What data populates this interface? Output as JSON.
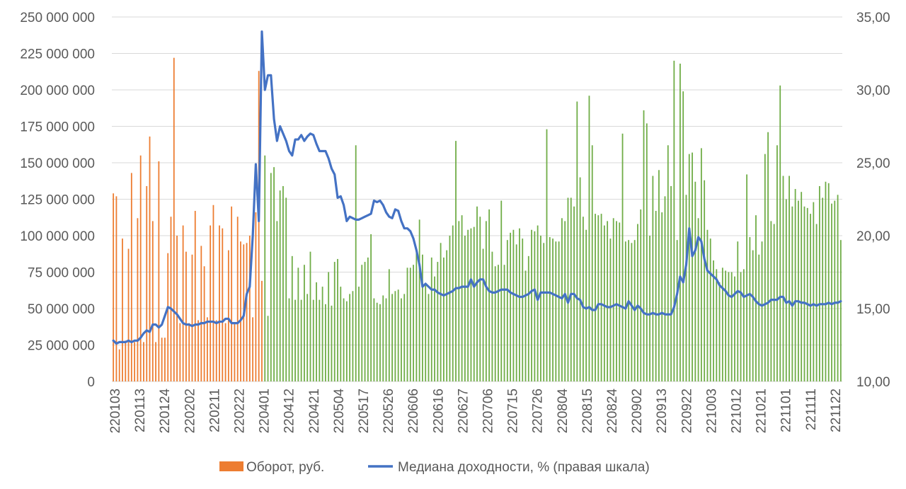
{
  "chart_data": {
    "type": "bar+line",
    "title": "",
    "colors": {
      "turnover_before": "#ed7d31",
      "turnover_after": "#70ad47",
      "yield_line": "#4472c4",
      "grid": "#d9d9d9",
      "text": "#595959"
    },
    "y_left": {
      "ylim": [
        0,
        250000000
      ],
      "ticks": [
        "0",
        "25 000 000",
        "50 000 000",
        "75 000 000",
        "100 000 000",
        "125 000 000",
        "150 000 000",
        "175 000 000",
        "200 000 000",
        "225 000 000",
        "250 000 000"
      ]
    },
    "y_right": {
      "ylim": [
        10,
        35
      ],
      "ticks": [
        "10,00",
        "15,00",
        "20,00",
        "25,00",
        "30,00",
        "35,00"
      ]
    },
    "x_tick_labels": [
      "220103",
      "220113",
      "220124",
      "220202",
      "220211",
      "220222",
      "220401",
      "220412",
      "220421",
      "220504",
      "220517",
      "220526",
      "220606",
      "220616",
      "220627",
      "220706",
      "220715",
      "220726",
      "220804",
      "220815",
      "220824",
      "220902",
      "220913",
      "220922",
      "221003",
      "221012",
      "221021",
      "221101",
      "221111",
      "221122"
    ],
    "bar_split_index": 50,
    "series": [
      {
        "name": "Оборот, руб.",
        "type": "bar",
        "values": [
          129,
          127,
          22,
          98,
          28,
          91,
          143,
          27,
          112,
          155,
          27,
          134,
          168,
          110,
          27,
          151,
          30,
          30,
          88,
          113,
          222,
          100,
          40,
          107,
          89,
          40,
          87,
          117,
          42,
          93,
          79,
          44,
          107,
          121,
          42,
          107,
          105,
          40,
          90,
          120,
          40,
          113,
          96,
          94,
          95,
          100,
          44,
          116,
          213,
          69,
          155,
          45,
          143,
          147,
          110,
          131,
          134,
          126,
          57,
          86,
          56,
          78,
          56,
          80,
          60,
          89,
          56,
          68,
          56,
          65,
          53,
          75,
          52,
          82,
          84,
          65,
          57,
          55,
          60,
          62,
          162,
          65,
          80,
          82,
          85,
          101,
          57,
          54,
          53,
          59,
          57,
          77,
          60,
          62,
          63,
          57,
          60,
          78,
          78,
          80,
          89,
          111,
          87,
          66,
          60,
          85,
          72,
          82,
          95,
          85,
          90,
          100,
          107,
          165,
          110,
          114,
          100,
          104,
          105,
          106,
          120,
          113,
          91,
          110,
          118,
          89,
          79,
          80,
          124,
          80,
          97,
          102,
          104,
          94,
          105,
          98,
          76,
          86,
          104,
          103,
          107,
          100,
          95,
          173,
          99,
          98,
          96,
          96,
          112,
          110,
          126,
          126,
          120,
          192,
          140,
          113,
          104,
          196,
          162,
          115,
          114,
          115,
          107,
          110,
          98,
          112,
          110,
          109,
          170,
          96,
          97,
          95,
          97,
          108,
          118,
          186,
          177,
          100,
          141,
          117,
          145,
          116,
          127,
          162,
          134,
          220,
          97,
          218,
          199,
          128,
          156,
          157,
          137,
          112,
          160,
          138,
          104,
          98,
          83,
          77,
          68,
          78,
          76,
          75,
          75,
          72,
          96,
          75,
          77,
          142,
          99,
          90,
          114,
          87,
          96,
          156,
          171,
          110,
          108,
          162,
          203,
          141,
          125,
          141,
          120,
          132,
          124,
          130,
          120,
          119,
          115,
          123,
          108,
          134,
          126,
          137,
          136,
          122,
          124,
          128,
          97
        ]
      },
      {
        "name": "Медиана доходности, % (правая шкала)",
        "type": "line",
        "values": [
          12.8,
          12.6,
          12.7,
          12.7,
          12.7,
          12.8,
          12.7,
          12.8,
          12.8,
          13.0,
          13.3,
          13.5,
          13.4,
          13.9,
          13.9,
          13.7,
          13.9,
          14.5,
          15.1,
          15.0,
          14.8,
          14.6,
          14.3,
          14.0,
          13.9,
          13.9,
          13.8,
          13.9,
          13.9,
          14.0,
          14.0,
          14.1,
          14.1,
          14.1,
          14.0,
          14.1,
          14.1,
          14.3,
          14.3,
          14.0,
          14.0,
          14.0,
          14.2,
          14.5,
          16.0,
          16.5,
          20.0,
          24.9,
          21.0,
          34.0,
          30.0,
          31.0,
          31.0,
          28.0,
          26.5,
          27.5,
          27.0,
          26.5,
          25.8,
          25.5,
          26.6,
          26.6,
          26.9,
          26.5,
          26.8,
          27.0,
          26.9,
          26.3,
          25.8,
          25.8,
          25.8,
          25.3,
          24.6,
          24.2,
          22.6,
          22.7,
          22.1,
          21.0,
          21.3,
          21.2,
          21.1,
          21.1,
          21.2,
          21.3,
          21.4,
          21.5,
          22.4,
          22.3,
          22.4,
          22.1,
          21.6,
          21.3,
          21.2,
          21.8,
          21.7,
          21.0,
          20.5,
          20.5,
          20.3,
          19.8,
          19.0,
          18.0,
          16.5,
          16.7,
          16.5,
          16.3,
          16.3,
          16.1,
          16.0,
          15.9,
          16.0,
          16.1,
          16.2,
          16.4,
          16.4,
          16.5,
          16.5,
          16.5,
          17.0,
          16.5,
          16.8,
          17.0,
          17.0,
          16.5,
          16.2,
          16.1,
          16.1,
          16.2,
          16.3,
          16.3,
          16.3,
          16.1,
          16.0,
          15.9,
          15.8,
          15.8,
          15.9,
          16.0,
          16.2,
          16.3,
          15.6,
          16.1,
          16.1,
          16.1,
          16.1,
          16.0,
          15.9,
          15.8,
          15.7,
          16.0,
          15.4,
          16.0,
          16.0,
          15.7,
          15.6,
          15.1,
          15.0,
          15.1,
          14.9,
          14.9,
          15.3,
          15.3,
          15.2,
          15.1,
          15.1,
          15.2,
          15.3,
          15.2,
          15.1,
          15.0,
          15.5,
          15.2,
          14.9,
          15.2,
          15.0,
          14.7,
          14.6,
          14.6,
          14.7,
          14.6,
          14.6,
          14.7,
          14.6,
          14.6,
          14.6,
          15.1,
          16.0,
          17.2,
          16.8,
          18.0,
          20.5,
          18.6,
          19.0,
          19.9,
          19.6,
          18.4,
          17.6,
          17.4,
          17.2,
          17.0,
          16.6,
          16.4,
          16.2,
          15.9,
          15.8,
          16.0,
          16.2,
          16.1,
          15.8,
          15.9,
          16.0,
          15.8,
          15.5,
          15.3,
          15.2,
          15.3,
          15.4,
          15.6,
          15.6,
          15.6,
          15.8,
          15.8,
          15.4,
          15.5,
          15.2,
          15.5,
          15.5,
          15.4,
          15.4,
          15.3,
          15.2,
          15.3,
          15.2,
          15.3,
          15.3,
          15.3,
          15.4,
          15.3,
          15.4,
          15.4,
          15.5
        ]
      }
    ],
    "legend": {
      "position": "bottom",
      "items": [
        {
          "label": "Оборот, руб.",
          "kind": "bar"
        },
        {
          "label": "Медиана доходности, % (правая шкала)",
          "kind": "line"
        }
      ]
    },
    "grid": true
  }
}
